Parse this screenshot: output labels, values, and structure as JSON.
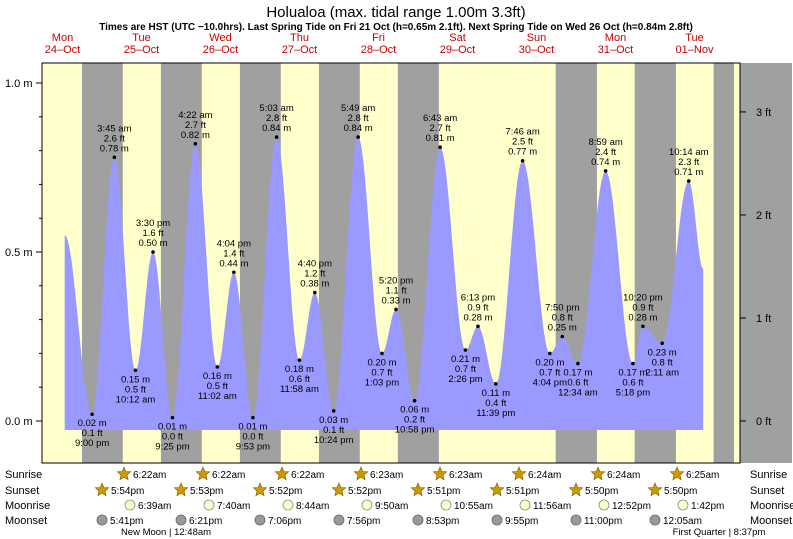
{
  "title": "Holualoa (max. tidal range 1.00m 3.3ft)",
  "subtitle": "Times are HST (UTC −10.0hrs). Last Spring Tide on Fri 21 Oct (h=0.65m 2.1ft). Next Spring Tide on Wed 26 Oct (h=0.84m 2.8ft)",
  "colors": {
    "day": "#ffffcc",
    "night": "#a0a0a0",
    "water": "#9999ff",
    "day_label": "#cc0000",
    "frame": "#000000",
    "sun_icon": "#cc9900",
    "moonrise_icon": "#ffffcc",
    "moonset_icon": "#999999"
  },
  "chart_data": {
    "type": "area",
    "title": "Holualoa (max. tidal range 1.00m 3.3ft)",
    "ylim": [
      -0.03,
      1.02
    ],
    "yticks_m": [
      "0.0 m",
      "0.5 m",
      "1.0 m"
    ],
    "yticks_m_values": [
      0,
      0.5,
      1.0
    ],
    "yticks_ft": [
      "0 ft",
      "1 ft",
      "2 ft",
      "3 ft"
    ],
    "yticks_ft_values": [
      0,
      1,
      2,
      3
    ],
    "days": [
      {
        "dow": "Mon",
        "date": "24–Oct"
      },
      {
        "dow": "Tue",
        "date": "25–Oct"
      },
      {
        "dow": "Wed",
        "date": "26–Oct"
      },
      {
        "dow": "Thu",
        "date": "27–Oct"
      },
      {
        "dow": "Fri",
        "date": "28–Oct"
      },
      {
        "dow": "Sat",
        "date": "29–Oct"
      },
      {
        "dow": "Sun",
        "date": "30–Oct"
      },
      {
        "dow": "Mon",
        "date": "31–Oct"
      },
      {
        "dow": "Tue",
        "date": "01–Nov"
      }
    ],
    "night_bands_days": [
      [
        0.747,
        1.263
      ],
      [
        1.746,
        2.263
      ],
      [
        2.746,
        3.263
      ],
      [
        3.746,
        4.263
      ],
      [
        4.745,
        5.264
      ],
      [
        5.744,
        5.5
      ],
      [
        6.743,
        7.265
      ],
      [
        7.743,
        8.265
      ],
      [
        8.742,
        9.0
      ]
    ],
    "tides": [
      {
        "t": 0.528,
        "h": 0.55,
        "time": "",
        "ft": "",
        "m": "",
        "type": "start"
      },
      {
        "t": 0.875,
        "h": 0.02,
        "time": "9:00 pm",
        "ft": "0.1 ft",
        "m": "0.02 m",
        "type": "low"
      },
      {
        "t": 1.156,
        "h": 0.78,
        "time": "3:45 am",
        "ft": "2.6 ft",
        "m": "0.78 m",
        "type": "high"
      },
      {
        "t": 1.424,
        "h": 0.15,
        "time": "10:12 am",
        "ft": "0.5 ft",
        "m": "0.15 m",
        "type": "low"
      },
      {
        "t": 1.646,
        "h": 0.5,
        "time": "3:30 pm",
        "ft": "1.6 ft",
        "m": "0.50 m",
        "type": "high"
      },
      {
        "t": 1.892,
        "h": 0.01,
        "time": "9:25 pm",
        "ft": "0.0 ft",
        "m": "0.01 m",
        "type": "low"
      },
      {
        "t": 2.182,
        "h": 0.82,
        "time": "4:22 am",
        "ft": "2.7 ft",
        "m": "0.82 m",
        "type": "high"
      },
      {
        "t": 2.46,
        "h": 0.16,
        "time": "11:02 am",
        "ft": "0.5 ft",
        "m": "0.16 m",
        "type": "low"
      },
      {
        "t": 2.669,
        "h": 0.44,
        "time": "4:04 pm",
        "ft": "1.4 ft",
        "m": "0.44 m",
        "type": "high"
      },
      {
        "t": 2.91,
        "h": 0.01,
        "time": "9:53 pm",
        "ft": "0.0 ft",
        "m": "0.01 m",
        "type": "low"
      },
      {
        "t": 3.21,
        "h": 0.84,
        "time": "5:03 am",
        "ft": "2.8 ft",
        "m": "0.84 m",
        "type": "high"
      },
      {
        "t": 3.499,
        "h": 0.18,
        "time": "11:58 am",
        "ft": "0.6 ft",
        "m": "0.18 m",
        "type": "low"
      },
      {
        "t": 3.694,
        "h": 0.38,
        "time": "4:40 pm",
        "ft": "1.2 ft",
        "m": "0.38 m",
        "type": "high"
      },
      {
        "t": 3.933,
        "h": 0.03,
        "time": "10:24 pm",
        "ft": "0.1 ft",
        "m": "0.03 m",
        "type": "low"
      },
      {
        "t": 4.242,
        "h": 0.84,
        "time": "5:49 am",
        "ft": "2.8 ft",
        "m": "0.84 m",
        "type": "high"
      },
      {
        "t": 4.544,
        "h": 0.2,
        "time": "1:03 pm",
        "ft": "0.7 ft",
        "m": "0.20 m",
        "type": "low"
      },
      {
        "t": 4.722,
        "h": 0.33,
        "time": "5:20 pm",
        "ft": "1.1 ft",
        "m": "0.33 m",
        "type": "high"
      },
      {
        "t": 4.957,
        "h": 0.06,
        "time": "10:58 pm",
        "ft": "0.2 ft",
        "m": "0.06 m",
        "type": "low"
      },
      {
        "t": 5.28,
        "h": 0.81,
        "time": "6:43 am",
        "ft": "2.7 ft",
        "m": "0.81 m",
        "type": "high"
      },
      {
        "t": 5.601,
        "h": 0.21,
        "time": "2:26 pm",
        "ft": "0.7 ft",
        "m": "0.21 m",
        "type": "low"
      },
      {
        "t": 5.759,
        "h": 0.28,
        "time": "6:13 pm",
        "ft": "0.9 ft",
        "m": "0.28 m",
        "type": "high"
      },
      {
        "t": 5.985,
        "h": 0.11,
        "time": "11:39 pm",
        "ft": "0.4 ft",
        "m": "0.11 m",
        "type": "low"
      },
      {
        "t": 6.324,
        "h": 0.77,
        "time": "7:46 am",
        "ft": "2.5 ft",
        "m": "0.77 m",
        "type": "high"
      },
      {
        "t": 6.669,
        "h": 0.2,
        "time": "4:04 pm",
        "ft": "0.7 ft",
        "m": "0.20 m",
        "type": "low"
      },
      {
        "t": 6.826,
        "h": 0.25,
        "time": "7:50 pm",
        "ft": "0.8 ft",
        "m": "0.25 m",
        "type": "high"
      },
      {
        "t": 7.024,
        "h": 0.17,
        "time": "12:34 am",
        "ft": "0.6 ft",
        "m": "0.17 m",
        "type": "low"
      },
      {
        "t": 7.375,
        "h": 0.74,
        "time": "8:59 am",
        "ft": "2.4 ft",
        "m": "0.74 m",
        "type": "high"
      },
      {
        "t": 7.721,
        "h": 0.17,
        "time": "5:18 pm",
        "ft": "0.6 ft",
        "m": "0.17 m",
        "type": "low"
      },
      {
        "t": 7.847,
        "h": 0.28,
        "time": "10:20 pm",
        "ft": "0.9 ft",
        "m": "0.28 m",
        "type": "high"
      },
      {
        "t": 8.091,
        "h": 0.23,
        "time": "2:11 am",
        "ft": "0.8 ft",
        "m": "0.23 m",
        "type": "low"
      },
      {
        "t": 8.427,
        "h": 0.71,
        "time": "10:14 am",
        "ft": "2.3 ft",
        "m": "0.71 m",
        "type": "high"
      },
      {
        "t": 8.61,
        "h": 0.45,
        "time": "",
        "ft": "",
        "m": "",
        "type": "end"
      }
    ]
  },
  "rows": {
    "labels": [
      "Sunrise",
      "Sunset",
      "Moonrise",
      "Moonset"
    ],
    "sunrise": [
      {
        "day": 1,
        "time": "6:22am"
      },
      {
        "day": 2,
        "time": "6:22am"
      },
      {
        "day": 3,
        "time": "6:22am"
      },
      {
        "day": 4,
        "time": "6:23am"
      },
      {
        "day": 5,
        "time": "6:23am"
      },
      {
        "day": 6,
        "time": "6:24am"
      },
      {
        "day": 7,
        "time": "6:24am"
      },
      {
        "day": 8,
        "time": "6:25am"
      }
    ],
    "sunset": [
      {
        "day": 0,
        "time": "5:54pm"
      },
      {
        "day": 1,
        "time": "5:53pm"
      },
      {
        "day": 2,
        "time": "5:52pm"
      },
      {
        "day": 3,
        "time": "5:52pm"
      },
      {
        "day": 4,
        "time": "5:51pm"
      },
      {
        "day": 5,
        "time": "5:51pm"
      },
      {
        "day": 6,
        "time": "5:50pm"
      },
      {
        "day": 7,
        "time": "5:50pm"
      }
    ],
    "moonrise": [
      {
        "day": 1,
        "time": "6:39am"
      },
      {
        "day": 2,
        "time": "7:40am"
      },
      {
        "day": 3,
        "time": "8:44am"
      },
      {
        "day": 4,
        "time": "9:50am"
      },
      {
        "day": 5,
        "time": "10:55am"
      },
      {
        "day": 6,
        "time": "11:56am"
      },
      {
        "day": 7,
        "time": "12:52pm"
      },
      {
        "day": 8,
        "time": "1:42pm"
      }
    ],
    "moonset": [
      {
        "day": 0,
        "time": "5:41pm"
      },
      {
        "day": 1,
        "time": "6:21pm"
      },
      {
        "day": 2,
        "time": "7:06pm"
      },
      {
        "day": 3,
        "time": "7:56pm"
      },
      {
        "day": 4,
        "time": "8:53pm"
      },
      {
        "day": 5,
        "time": "9:55pm"
      },
      {
        "day": 6,
        "time": "11:00pm"
      },
      {
        "day": 7,
        "time": "12:05am"
      }
    ],
    "moon_phases": [
      {
        "day": 0,
        "text": "New Moon | 12:48am"
      },
      {
        "day": 7,
        "text": "First Quarter | 8:37pm"
      }
    ]
  }
}
